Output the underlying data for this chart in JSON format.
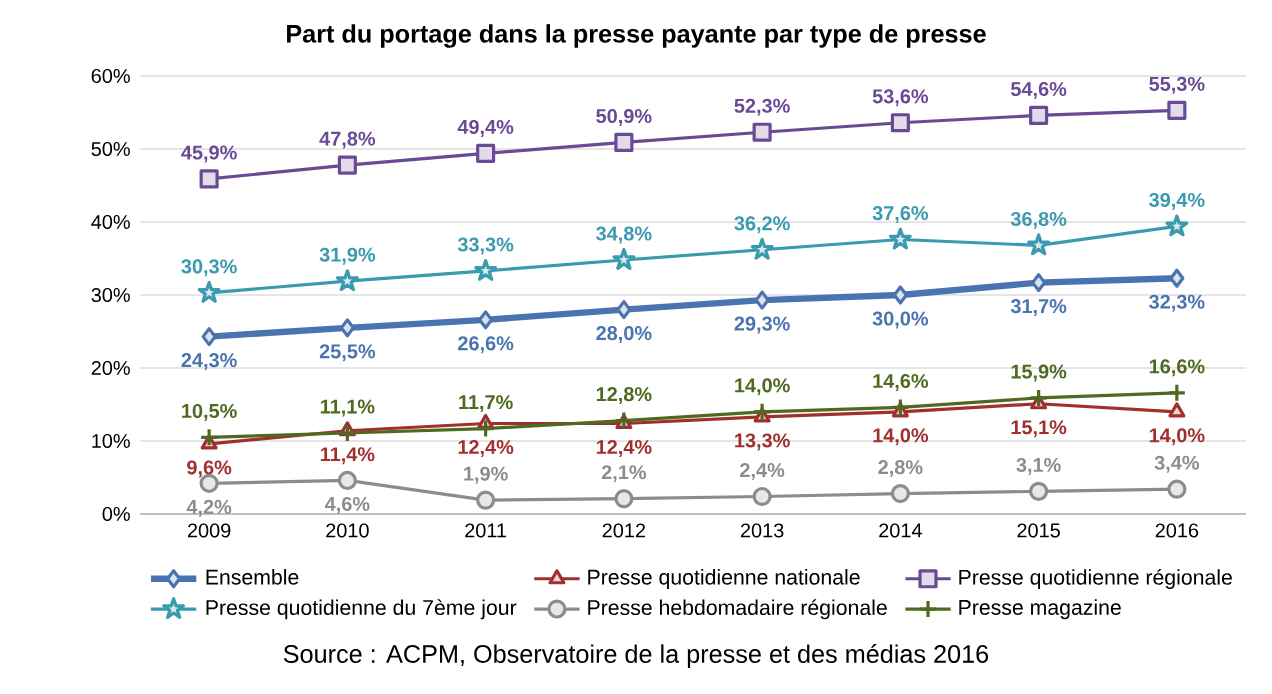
{
  "chart_data": {
    "type": "line",
    "title": "Part du portage dans la presse payante par type de presse",
    "annotations": [
      "Source : ACPM, Observatoire de la presse et des médias 2016"
    ],
    "categories": [
      "2009",
      "2010",
      "2011",
      "2012",
      "2013",
      "2014",
      "2015",
      "2016"
    ],
    "ylim": [
      0,
      60
    ],
    "yticks": [
      {
        "value": 0,
        "label": "0%"
      },
      {
        "value": 10,
        "label": "10%"
      },
      {
        "value": 20,
        "label": "20%"
      },
      {
        "value": 30,
        "label": "30%"
      },
      {
        "value": 40,
        "label": "40%"
      },
      {
        "value": 50,
        "label": "50%"
      },
      {
        "value": 60,
        "label": "60%"
      }
    ],
    "grid": "y",
    "legend": "bottom",
    "series": [
      {
        "name": "Ensemble",
        "color": "#4a74b0",
        "marker": "diamond",
        "values": [
          24.3,
          25.5,
          26.6,
          28.0,
          29.3,
          30.0,
          31.7,
          32.3
        ],
        "value_labels": [
          "24,3%",
          "25,5%",
          "26,6%",
          "28,0%",
          "29,3%",
          "30,0%",
          "31,7%",
          "32,3%"
        ]
      },
      {
        "name": "Presse quotidienne nationale",
        "color": "#a0302e",
        "marker": "triangle",
        "values": [
          9.6,
          11.4,
          12.4,
          12.4,
          13.3,
          14.0,
          15.1,
          14.0
        ],
        "value_labels": [
          "9,6%",
          "11,4%",
          "12,4%",
          "12,4%",
          "13,3%",
          "14,0%",
          "15,1%",
          "14,0%"
        ]
      },
      {
        "name": "Presse quotidienne régionale",
        "color": "#6a4a94",
        "marker": "square",
        "values": [
          45.9,
          47.8,
          49.4,
          50.9,
          52.3,
          53.6,
          54.6,
          55.3
        ],
        "value_labels": [
          "45,9%",
          "47,8%",
          "49,4%",
          "50,9%",
          "52,3%",
          "53,6%",
          "54,6%",
          "55,3%"
        ]
      },
      {
        "name": "Presse quotidienne du 7ème jour",
        "color": "#3a9ab0",
        "marker": "star",
        "values": [
          30.3,
          31.9,
          33.3,
          34.8,
          36.2,
          37.6,
          36.8,
          39.4
        ],
        "value_labels": [
          "30,3%",
          "31,9%",
          "33,3%",
          "34,8%",
          "36,2%",
          "37,6%",
          "36,8%",
          "39,4%"
        ]
      },
      {
        "name": "Presse hebdomadaire régionale",
        "color": "#8c8c8c",
        "marker": "circle",
        "values": [
          4.2,
          4.6,
          1.9,
          2.1,
          2.4,
          2.8,
          3.1,
          3.4
        ],
        "value_labels": [
          "4,2%",
          "4,6%",
          "1,9%",
          "2,1%",
          "2,4%",
          "2,8%",
          "3,1%",
          "3,4%"
        ]
      },
      {
        "name": "Presse magazine",
        "color": "#4f6a20",
        "marker": "cross",
        "values": [
          10.5,
          11.1,
          11.7,
          12.8,
          14.0,
          14.6,
          15.9,
          16.6
        ],
        "value_labels": [
          "10,5%",
          "11,1%",
          "11,7%",
          "12,8%",
          "14,0%",
          "14,6%",
          "15,9%",
          "16,6%"
        ]
      }
    ]
  }
}
